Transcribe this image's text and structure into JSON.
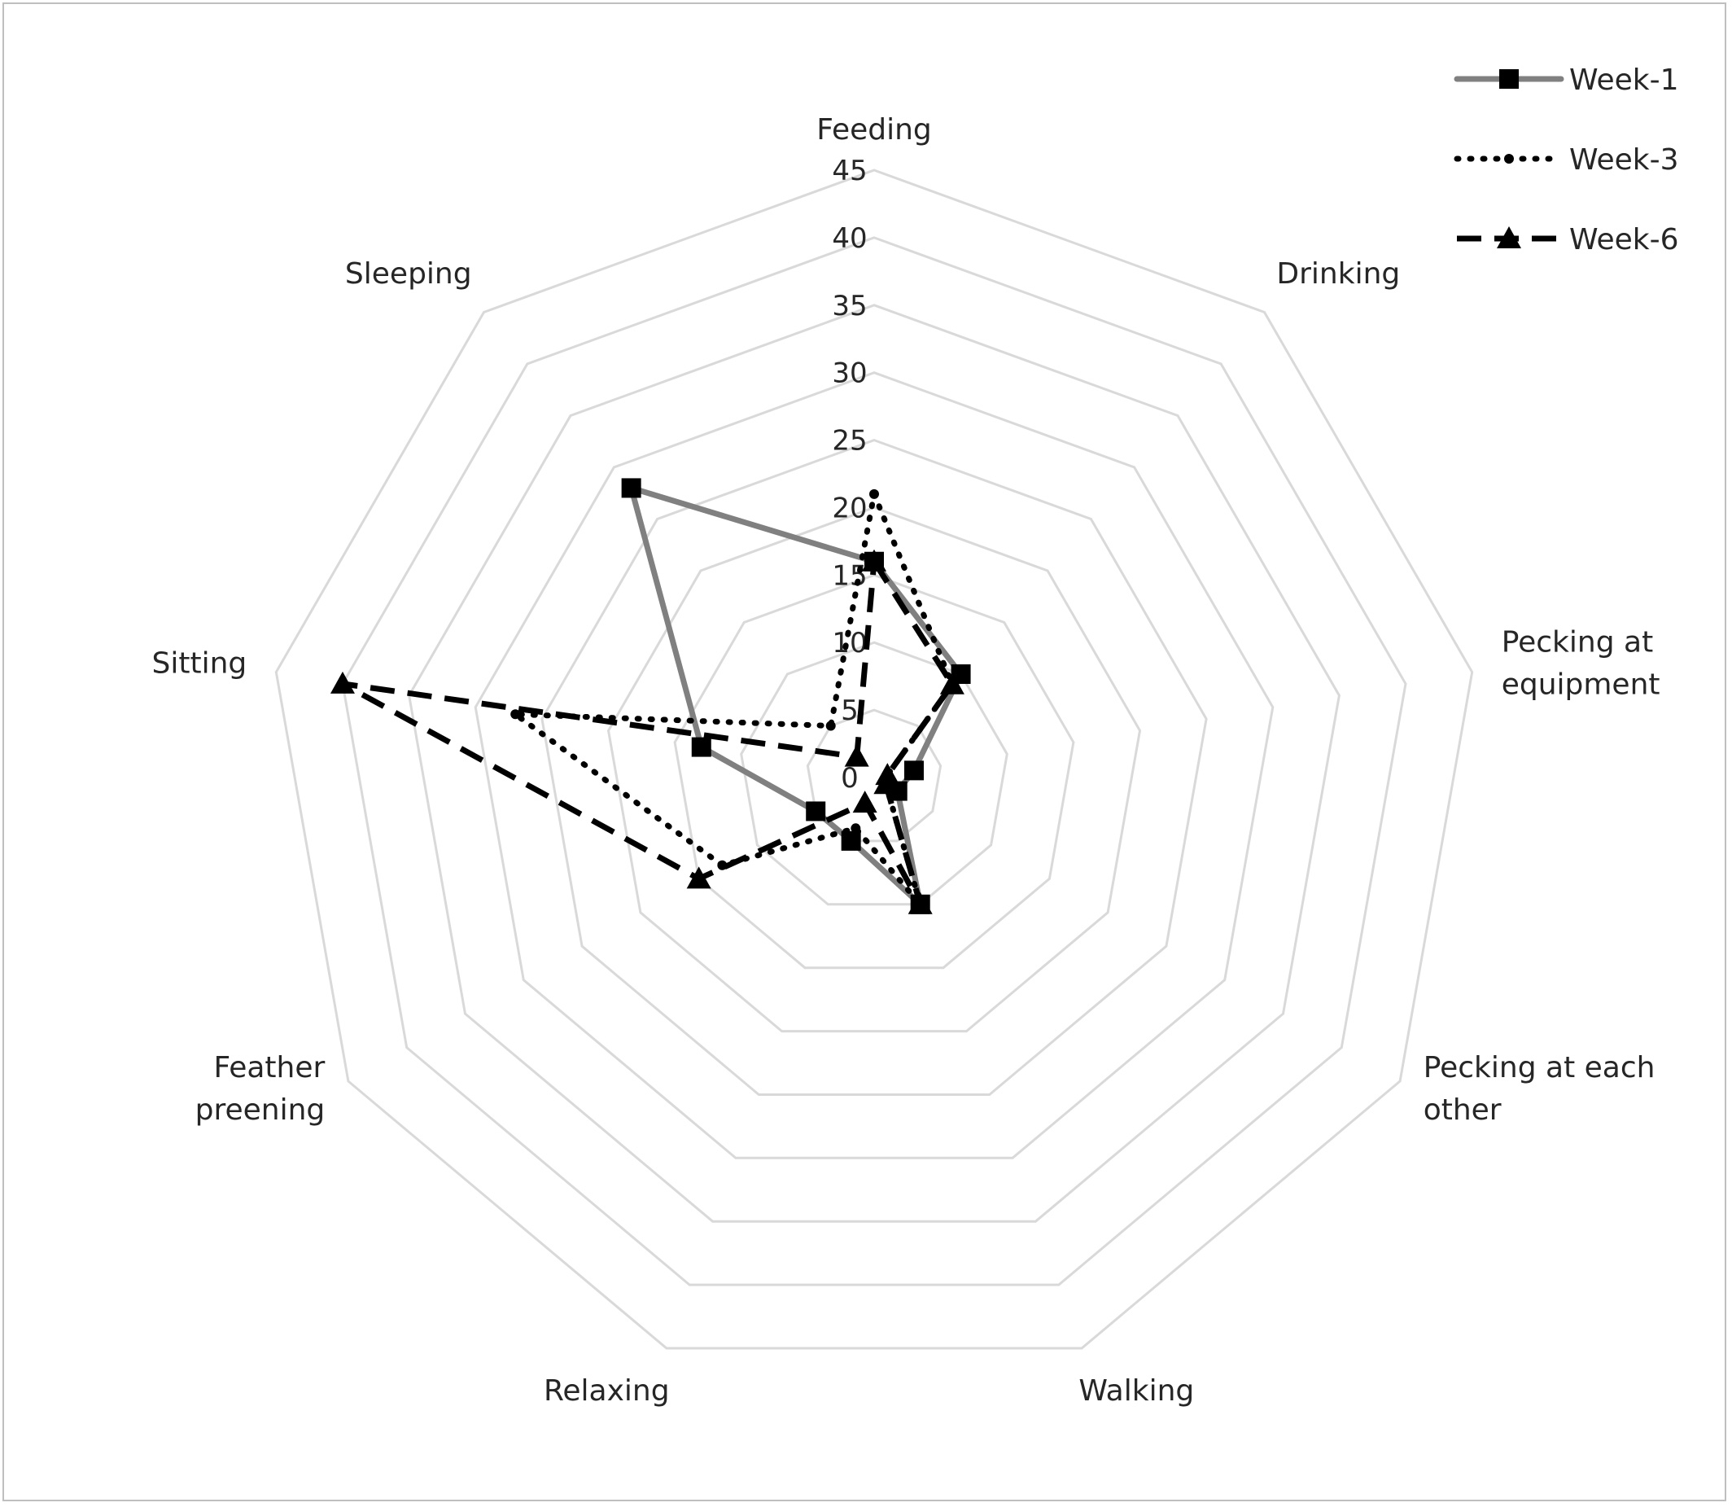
{
  "chart_data": {
    "type": "radar",
    "categories": [
      "Feeding",
      "Drinking",
      "Pecking at equipment",
      "Pecking at each other",
      "Walking",
      "Relaxing",
      "Feather preening",
      "Sitting",
      "Sleeping"
    ],
    "category_lines": [
      [
        "Feeding"
      ],
      [
        "Drinking"
      ],
      [
        "Pecking at",
        "equipment"
      ],
      [
        "Pecking at each",
        "other"
      ],
      [
        "Walking"
      ],
      [
        "Relaxing"
      ],
      [
        "Feather",
        "preening"
      ],
      [
        "Sitting"
      ],
      [
        "Sleeping"
      ]
    ],
    "ticks": [
      "0",
      "5",
      "10",
      "15",
      "20",
      "25",
      "30",
      "35",
      "40",
      "45"
    ],
    "rlim": [
      0,
      45
    ],
    "series": [
      {
        "name": "Week-1",
        "values": [
          16,
          10,
          3,
          2,
          10,
          5,
          5,
          13,
          28
        ],
        "color": "#808080",
        "style": "solid",
        "marker": "square"
      },
      {
        "name": "Week-3",
        "values": [
          21,
          9,
          1,
          1,
          10,
          4,
          13,
          27,
          5
        ],
        "color": "#000000",
        "style": "dotted",
        "marker": "circle"
      },
      {
        "name": "Week-6",
        "values": [
          16,
          9,
          1,
          1,
          10,
          2,
          15,
          40,
          2
        ],
        "color": "#000000",
        "style": "dashed",
        "marker": "triangle"
      }
    ],
    "grid": true,
    "legend_position": "top-right"
  }
}
